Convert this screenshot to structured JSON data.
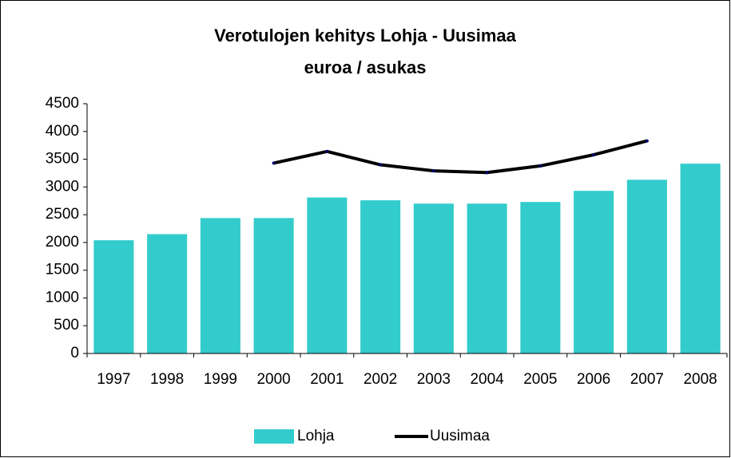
{
  "chart_data": {
    "type": "bar_line",
    "title": "Verotulojen kehitys Lohja - Uusimaa",
    "subtitle": "euroa / asukas",
    "categories": [
      "1997",
      "1998",
      "1999",
      "2000",
      "2001",
      "2002",
      "2003",
      "2004",
      "2005",
      "2006",
      "2007",
      "2008"
    ],
    "series": [
      {
        "name": "Lohja",
        "type": "bar",
        "color": "#33cccc",
        "values": [
          2040,
          2150,
          2440,
          2440,
          2810,
          2760,
          2700,
          2700,
          2730,
          2930,
          3130,
          3420
        ]
      },
      {
        "name": "Uusimaa",
        "type": "line",
        "color": "#000000",
        "values": [
          null,
          null,
          null,
          3430,
          3640,
          3400,
          3290,
          3260,
          3380,
          3580,
          3830,
          null
        ]
      }
    ],
    "ylim": [
      0,
      4500
    ],
    "yticks": [
      0,
      500,
      1000,
      1500,
      2000,
      2500,
      3000,
      3500,
      4000,
      4500
    ],
    "grid": false,
    "legend": "bottom"
  }
}
